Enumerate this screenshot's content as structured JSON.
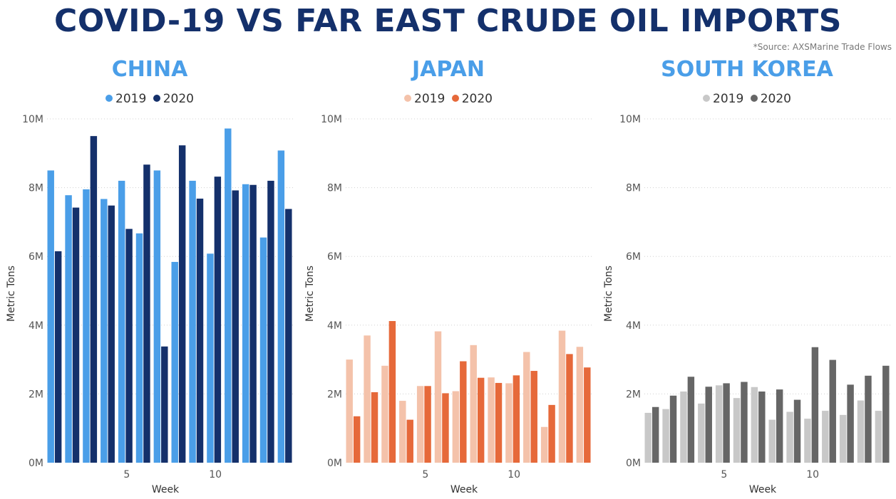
{
  "title": "COVID-19 VS FAR EAST CRUDE OIL IMPORTS",
  "source": "*Source: AXSMarine Trade Flows",
  "chart_data": [
    {
      "type": "bar",
      "title": "CHINA",
      "xlabel": "Week",
      "ylabel": "Metric Tons",
      "x": [
        1,
        2,
        3,
        4,
        5,
        6,
        7,
        8,
        9,
        10,
        11,
        12,
        13,
        14
      ],
      "x_ticks": [
        "5",
        "10"
      ],
      "y_ticks": [
        "0M",
        "2M",
        "4M",
        "6M",
        "8M",
        "10M"
      ],
      "ylim": [
        0,
        10000000
      ],
      "grid": true,
      "legend_position": "top-center",
      "series": [
        {
          "name": "2019",
          "color": "#4a9ee8",
          "values": [
            8500000,
            7780000,
            7950000,
            7670000,
            8200000,
            6670000,
            8500000,
            5840000,
            8200000,
            6080000,
            9720000,
            8100000,
            6550000,
            9080000
          ]
        },
        {
          "name": "2020",
          "color": "#14306b",
          "values": [
            6150000,
            7420000,
            9500000,
            7480000,
            6800000,
            8670000,
            3380000,
            9230000,
            7680000,
            8320000,
            7920000,
            8080000,
            8200000,
            7380000
          ]
        }
      ]
    },
    {
      "type": "bar",
      "title": "JAPAN",
      "xlabel": "Week",
      "ylabel": "Metric Tons",
      "x": [
        1,
        2,
        3,
        4,
        5,
        6,
        7,
        8,
        9,
        10,
        11,
        12,
        13,
        14
      ],
      "x_ticks": [
        "5",
        "10"
      ],
      "y_ticks": [
        "0M",
        "2M",
        "4M",
        "6M",
        "8M",
        "10M"
      ],
      "ylim": [
        0,
        10000000
      ],
      "grid": true,
      "legend_position": "top-center",
      "series": [
        {
          "name": "2019",
          "color": "#f4c2aa",
          "values": [
            3000000,
            3700000,
            2820000,
            1800000,
            2230000,
            3820000,
            2080000,
            3420000,
            2480000,
            2310000,
            3220000,
            1040000,
            3840000,
            3370000
          ]
        },
        {
          "name": "2020",
          "color": "#e6693a",
          "values": [
            1350000,
            2050000,
            4120000,
            1250000,
            2230000,
            2020000,
            2950000,
            2470000,
            2320000,
            2540000,
            2670000,
            1680000,
            3160000,
            2770000
          ]
        }
      ]
    },
    {
      "type": "bar",
      "title": "SOUTH KOREA",
      "xlabel": "Week",
      "ylabel": "Metric Tons",
      "x": [
        1,
        2,
        3,
        4,
        5,
        6,
        7,
        8,
        9,
        10,
        11,
        12,
        13,
        14
      ],
      "x_ticks": [
        "5",
        "10"
      ],
      "y_ticks": [
        "0M",
        "2M",
        "4M",
        "6M",
        "8M",
        "10M"
      ],
      "ylim": [
        0,
        10000000
      ],
      "grid": true,
      "legend_position": "top-center",
      "series": [
        {
          "name": "2019",
          "color": "#c8c8c8",
          "values": [
            1450000,
            1560000,
            2070000,
            1720000,
            2250000,
            1880000,
            2200000,
            1250000,
            1480000,
            1280000,
            1510000,
            1390000,
            1810000,
            1510000
          ]
        },
        {
          "name": "2020",
          "color": "#666666",
          "values": [
            1620000,
            1950000,
            2500000,
            2210000,
            2310000,
            2350000,
            2070000,
            2130000,
            1830000,
            3360000,
            2990000,
            2270000,
            2530000,
            2820000
          ]
        }
      ]
    }
  ]
}
